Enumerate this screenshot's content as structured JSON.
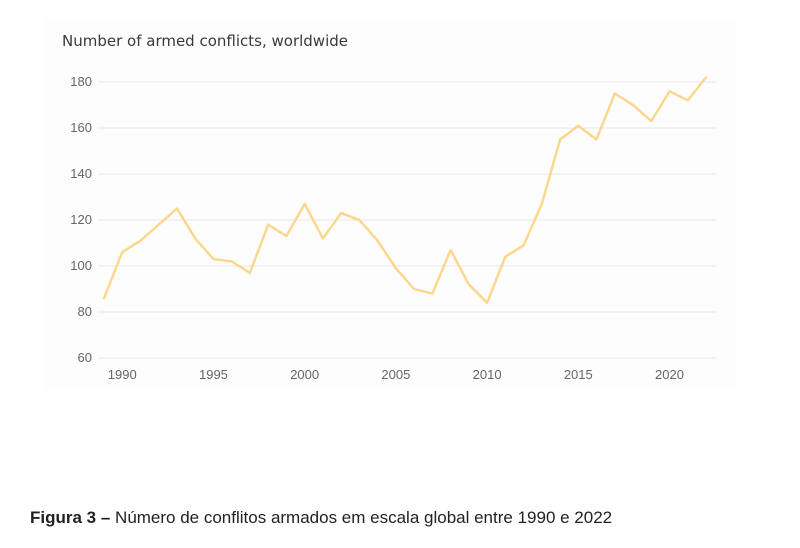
{
  "chart_data": {
    "type": "line",
    "title": "Number of armed conflicts, worldwide",
    "xlabel": "",
    "ylabel": "",
    "xlim": [
      1989,
      2022
    ],
    "ylim": [
      60,
      185
    ],
    "x_ticks": [
      1990,
      1995,
      2000,
      2005,
      2010,
      2015,
      2020
    ],
    "y_ticks": [
      60,
      80,
      100,
      120,
      140,
      160,
      180
    ],
    "grid": true,
    "line_color": "#fcd68a",
    "series": [
      {
        "x": [
          1989,
          1990,
          1991,
          1992,
          1993,
          1994,
          1995,
          1996,
          1997,
          1998,
          1999,
          2000,
          2001,
          2002,
          2003,
          2004,
          2005,
          2006,
          2007,
          2008,
          2009,
          2010,
          2011,
          2012,
          2013,
          2014,
          2015,
          2016,
          2017,
          2018,
          2019,
          2020,
          2021,
          2022
        ],
        "values": [
          86,
          106,
          111,
          118,
          125,
          112,
          103,
          102,
          97,
          118,
          113,
          127,
          112,
          123,
          120,
          111,
          99,
          90,
          88,
          107,
          92,
          84,
          104,
          109,
          127,
          155,
          161,
          155,
          175,
          170,
          163,
          176,
          172,
          182
        ]
      }
    ]
  },
  "caption": {
    "label": "Figura 3 –",
    "text": " Número de conflitos armados em escala global entre 1990 e 2022"
  }
}
